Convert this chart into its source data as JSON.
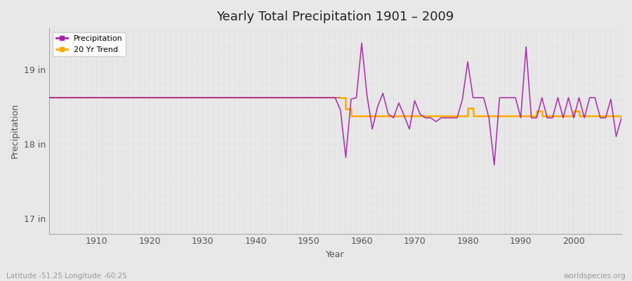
{
  "title": "Yearly Total Precipitation 1901 – 2009",
  "xlabel": "Year",
  "ylabel": "Precipitation",
  "bg_color": "#e8e8e8",
  "plot_bg_color": "#e8e8e8",
  "precip_color": "#aa22aa",
  "trend_color": "#ffaa00",
  "flat_trend_color": "#cc7744",
  "ylim": [
    16.8,
    19.55
  ],
  "yticks": [
    17.0,
    18.0,
    19.0
  ],
  "ytick_labels": [
    "17 in",
    "18 in",
    "19 in"
  ],
  "xticks": [
    1910,
    1920,
    1930,
    1940,
    1950,
    1960,
    1970,
    1980,
    1990,
    2000
  ],
  "flat_value": 18.62,
  "footer_left": "Latitude -51.25 Longitude -60.25",
  "footer_right": "worldspecies.org",
  "grid_color": "#bbbbbb",
  "tick_color": "#555555",
  "precip_years": [
    1955,
    1956,
    1957,
    1958,
    1959,
    1960,
    1961,
    1962,
    1963,
    1964,
    1965,
    1966,
    1967,
    1968,
    1969,
    1970,
    1971,
    1972,
    1973,
    1974,
    1975,
    1976,
    1977,
    1978,
    1979,
    1980,
    1981,
    1982,
    1983,
    1984,
    1985,
    1986,
    1987,
    1988,
    1989,
    1990,
    1991,
    1992,
    1993,
    1994,
    1995,
    1996,
    1997,
    1998,
    1999,
    2000,
    2001,
    2002,
    2003,
    2004,
    2005,
    2006,
    2007,
    2008,
    2009
  ],
  "precip_values": [
    18.62,
    18.45,
    17.82,
    18.6,
    18.62,
    19.35,
    18.65,
    18.2,
    18.5,
    18.68,
    18.4,
    18.35,
    18.55,
    18.38,
    18.2,
    18.58,
    18.4,
    18.35,
    18.35,
    18.3,
    18.35,
    18.35,
    18.35,
    18.35,
    18.6,
    19.1,
    18.62,
    18.62,
    18.62,
    18.35,
    17.72,
    18.62,
    18.62,
    18.62,
    18.62,
    18.35,
    19.3,
    18.35,
    18.35,
    18.62,
    18.35,
    18.35,
    18.62,
    18.35,
    18.62,
    18.35,
    18.62,
    18.35,
    18.62,
    18.62,
    18.35,
    18.35,
    18.6,
    18.1,
    18.35
  ],
  "trend_years_step": [
    1901,
    1956,
    1957,
    1962,
    1993,
    2009
  ],
  "trend_values_step": [
    18.62,
    18.62,
    18.47,
    18.38,
    18.38,
    18.38
  ]
}
